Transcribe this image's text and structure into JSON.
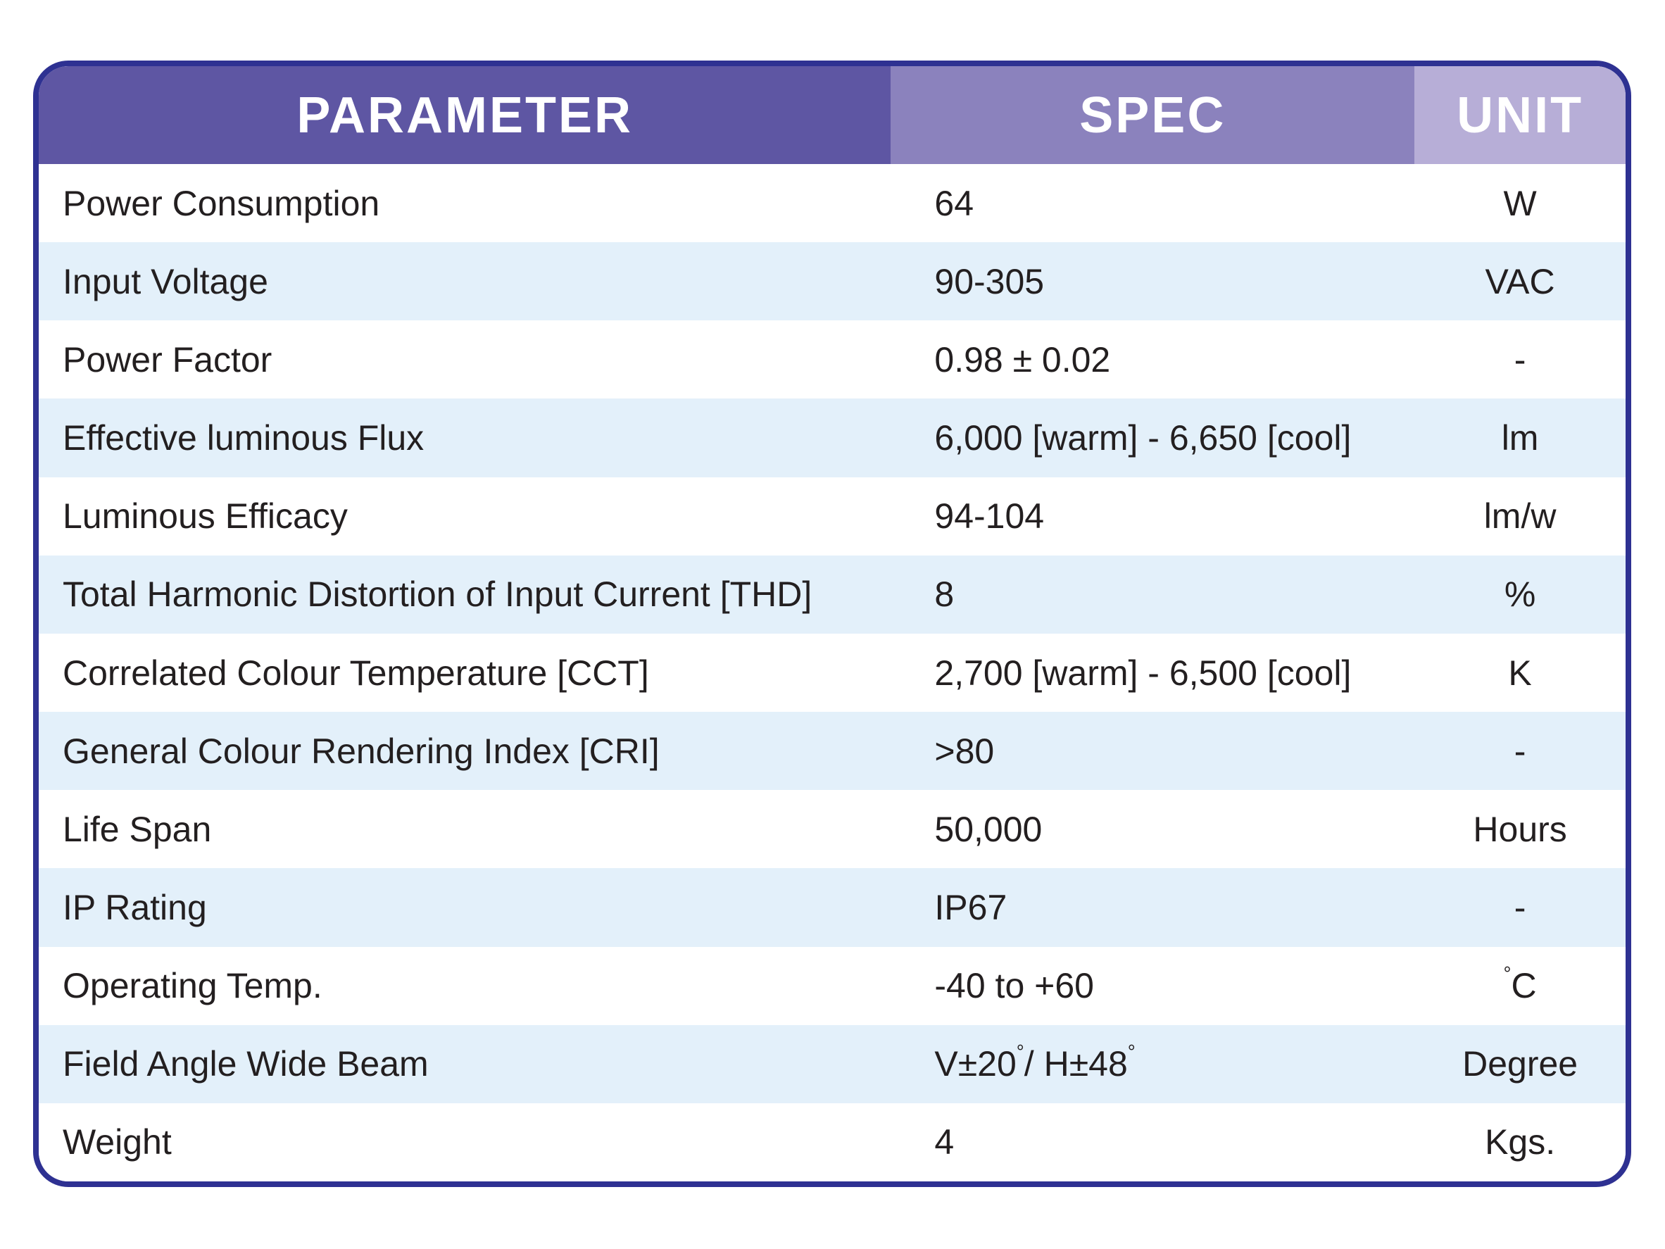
{
  "table": {
    "headers": [
      {
        "label": "PARAMETER"
      },
      {
        "label": "SPEC"
      },
      {
        "label": "UNIT"
      }
    ],
    "rows": [
      {
        "parameter": "Power Consumption",
        "spec": "64",
        "unit": "W"
      },
      {
        "parameter": "Input Voltage",
        "spec": "90-305",
        "unit": "VAC"
      },
      {
        "parameter": "Power Factor",
        "spec": "0.98 ± 0.02",
        "unit": "-"
      },
      {
        "parameter": "Effective luminous Flux",
        "spec": "6,000 [warm] - 6,650 [cool]",
        "unit": "lm"
      },
      {
        "parameter": "Luminous Efficacy",
        "spec": "94-104",
        "unit": "lm/w"
      },
      {
        "parameter": "Total Harmonic Distortion of Input Current [THD]",
        "spec": "8",
        "unit": "%"
      },
      {
        "parameter": "Correlated Colour Temperature [CCT]",
        "spec": "2,700 [warm] - 6,500 [cool]",
        "unit": "K"
      },
      {
        "parameter": "General Colour Rendering Index [CRI]",
        "spec": ">80",
        "unit": "-"
      },
      {
        "parameter": "Life Span",
        "spec": "50,000",
        "unit": "Hours"
      },
      {
        "parameter": "IP Rating",
        "spec": "IP67",
        "unit": "-"
      },
      {
        "parameter": "Operating Temp.",
        "spec": "-40 to +60",
        "unit": "°C"
      },
      {
        "parameter": "Field Angle Wide Beam",
        "spec": "V±20°/ H±48°",
        "unit": "Degree"
      },
      {
        "parameter": "Weight",
        "spec": "4",
        "unit": "Kgs."
      }
    ],
    "theme": {
      "border_color": "#2e3192",
      "header_parameter_bg": "#5e56a3",
      "header_spec_bg": "#8b82bd",
      "header_unit_bg": "#b7aed7",
      "stripe_row_bg": "#e3f0fa",
      "row_bg": "#ffffff",
      "header_text_color": "#ffffff",
      "body_text_color": "#231f20"
    }
  }
}
